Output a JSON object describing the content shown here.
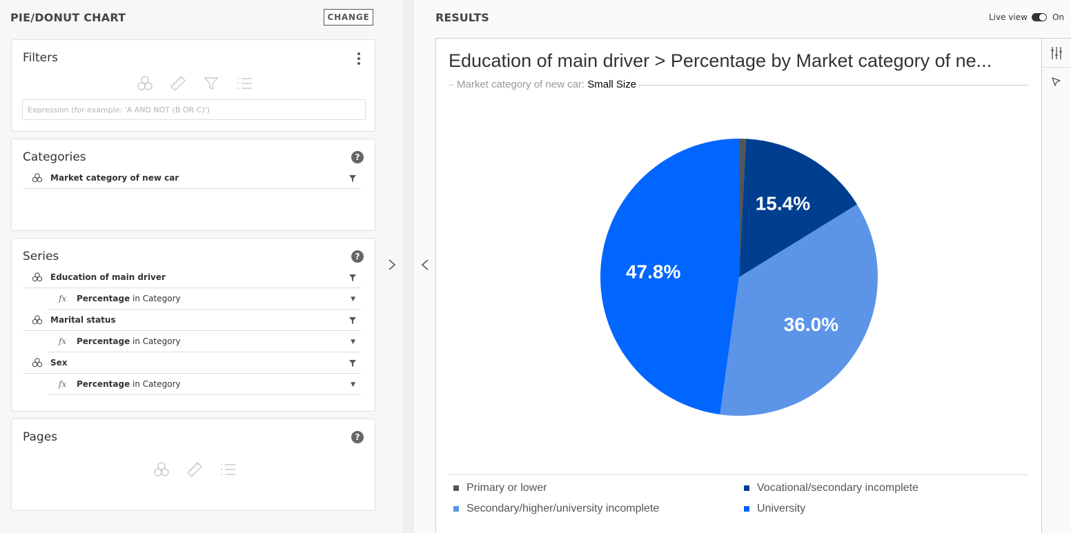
{
  "left": {
    "title": "PIE/DONUT CHART",
    "change_label": "CHANGE",
    "filters": {
      "title": "Filters",
      "expression_placeholder": "Expression (for example: 'A AND NOT (B OR C)')"
    },
    "categories": {
      "title": "Categories",
      "help": "?",
      "items": [
        {
          "label": "Market category of new car"
        }
      ]
    },
    "series": {
      "title": "Series",
      "help": "?",
      "items": [
        {
          "label": "Education of main driver",
          "measure": "Percentage",
          "measure_suffix": " in Category"
        },
        {
          "label": "Marital status",
          "measure": "Percentage",
          "measure_suffix": " in Category"
        },
        {
          "label": "Sex",
          "measure": "Percentage",
          "measure_suffix": " in Category"
        }
      ],
      "fx_symbol": "fx"
    },
    "pages": {
      "title": "Pages",
      "help": "?"
    }
  },
  "results": {
    "title": "RESULTS",
    "live_view_label": "Live view",
    "live_view_state": "On",
    "live_view_on": true
  },
  "chart_data": {
    "type": "pie",
    "title": "Education of main driver > Percentage by Market category of ne...",
    "subtitle_label": "Market category of new car:",
    "subtitle_value": "Small Size",
    "categories": [
      "Primary or lower",
      "Vocational/secondary incomplete",
      "Secondary/higher/university incomplete",
      "University"
    ],
    "values": [
      0.8,
      15.4,
      36.0,
      47.8
    ],
    "data_labels": [
      "",
      "15.4%",
      "36.0%",
      "47.8%"
    ],
    "colors": [
      "#555555",
      "#003f8f",
      "#5c95e8",
      "#0066ff"
    ],
    "legend_position": "bottom"
  }
}
